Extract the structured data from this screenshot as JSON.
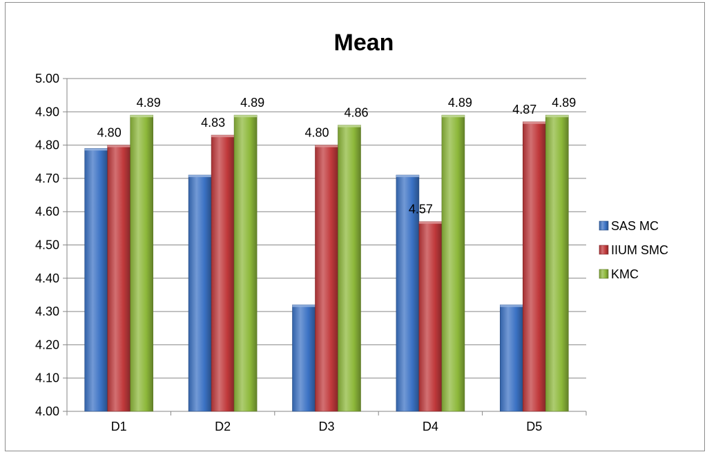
{
  "chart_data": {
    "type": "bar",
    "title": "Mean",
    "xlabel": "",
    "ylabel": "",
    "categories": [
      "D1",
      "D2",
      "D3",
      "D4",
      "D5"
    ],
    "ylim": [
      4.0,
      5.0
    ],
    "yticks": [
      "4.00",
      "4.10",
      "4.20",
      "4.30",
      "4.40",
      "4.50",
      "4.60",
      "4.70",
      "4.80",
      "4.90",
      "5.00"
    ],
    "grid": true,
    "legend_position": "right",
    "series": [
      {
        "name": "SAS MC",
        "color": "#3b72c4",
        "values": [
          4.79,
          4.71,
          4.32,
          4.71,
          4.32
        ],
        "data_labels": [
          null,
          null,
          null,
          null,
          null
        ]
      },
      {
        "name": "IIUM SMC",
        "color": "#c0393b",
        "values": [
          4.8,
          4.83,
          4.8,
          4.57,
          4.87
        ],
        "data_labels": [
          "4.80",
          "4.83",
          "4.80",
          "4.57",
          "4.87"
        ]
      },
      {
        "name": "KMC",
        "color": "#8db83a",
        "values": [
          4.89,
          4.89,
          4.86,
          4.89,
          4.89
        ],
        "data_labels": [
          "4.89",
          "4.89",
          "4.86",
          "4.89",
          "4.89"
        ]
      }
    ]
  }
}
